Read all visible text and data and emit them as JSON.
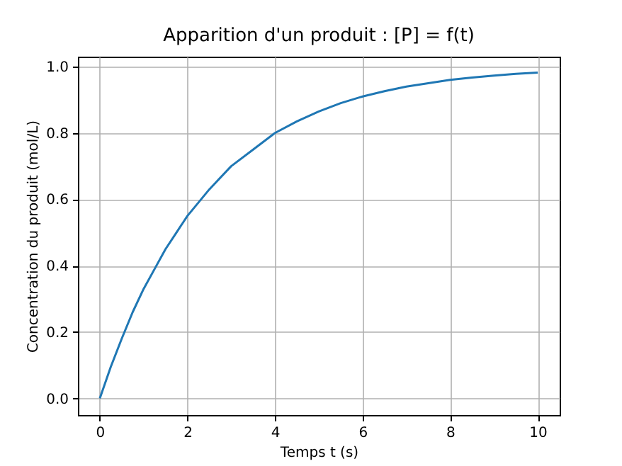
{
  "chart_data": {
    "type": "line",
    "title": "Apparition d'un produit : [P] = f(t)",
    "xlabel": "Temps t (s)",
    "ylabel": "Concentration du produit (mol/L)",
    "x": [
      0,
      0.25,
      0.5,
      0.75,
      1,
      1.25,
      1.5,
      1.75,
      2,
      2.5,
      3,
      3.5,
      4,
      4.5,
      5,
      5.5,
      6,
      6.5,
      7,
      7.5,
      8,
      8.5,
      9,
      9.5,
      10
    ],
    "series": [
      {
        "color": "#1f77b4",
        "values": [
          0,
          0.095,
          0.18,
          0.26,
          0.33,
          0.39,
          0.45,
          0.5,
          0.55,
          0.63,
          0.7,
          0.75,
          0.8,
          0.835,
          0.865,
          0.89,
          0.91,
          0.926,
          0.94,
          0.95,
          0.96,
          0.967,
          0.973,
          0.978,
          0.982
        ]
      }
    ],
    "xlim": [
      -0.5,
      10.5
    ],
    "ylim": [
      -0.05,
      1.03
    ],
    "xticks": [
      0,
      2,
      4,
      6,
      8,
      10
    ],
    "yticks": [
      {
        "value": 0,
        "label": "0.0"
      },
      {
        "value": 0.2,
        "label": "0.2"
      },
      {
        "value": 0.4,
        "label": "0.4"
      },
      {
        "value": 0.6,
        "label": "0.6"
      },
      {
        "value": 0.8,
        "label": "0.8"
      },
      {
        "value": 1,
        "label": "1.0"
      }
    ],
    "grid": true
  }
}
